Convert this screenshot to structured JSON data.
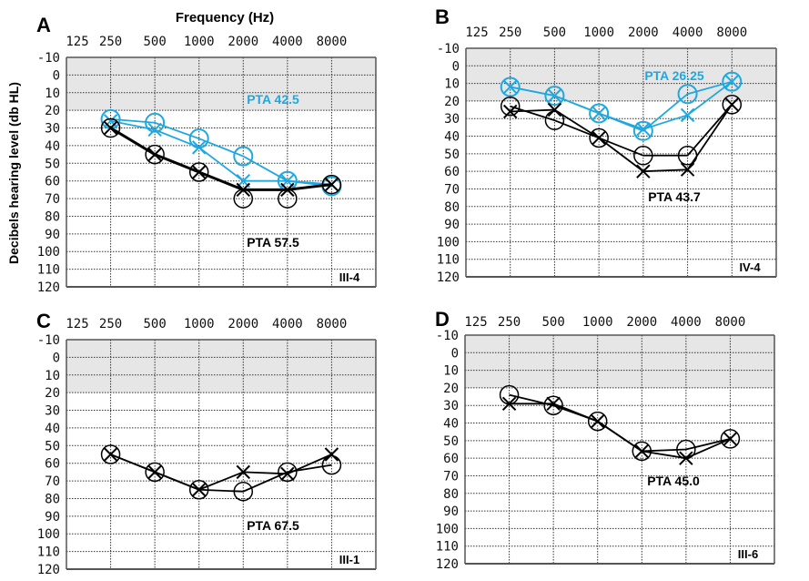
{
  "figure": {
    "x_title": "Frequency (Hz)",
    "y_title": "Decibels hearing level (db HL)",
    "colors": {
      "blue": "#1fa8e0",
      "black": "#000000",
      "normal_band": "#e6e6e6",
      "grid": "#333333"
    }
  },
  "chart_data": [
    {
      "type": "line",
      "panel_letter": "A",
      "subject": "III-4",
      "x_ticks": [
        "125",
        "250",
        "500",
        "1000",
        "2000",
        "4000",
        "8000"
      ],
      "y_ticks": [
        -10,
        0,
        10,
        20,
        30,
        40,
        50,
        60,
        70,
        80,
        90,
        100,
        110,
        120
      ],
      "ylim": [
        -10,
        120
      ],
      "y_inverted": true,
      "normal_band": [
        -10,
        20
      ],
      "grid": true,
      "annotations": [
        {
          "text": "PTA 42.5",
          "color": "blue"
        },
        {
          "text": "PTA 57.5",
          "color": "black"
        }
      ],
      "series": [
        {
          "name": "blue-circle",
          "marker": "circle",
          "color": "blue",
          "x": [
            "250",
            "500",
            "1000",
            "2000",
            "4000",
            "8000"
          ],
          "values": [
            25,
            27,
            36,
            46,
            60,
            63
          ]
        },
        {
          "name": "blue-x",
          "marker": "x",
          "color": "blue",
          "x": [
            "250",
            "500",
            "1000",
            "2000",
            "4000",
            "8000"
          ],
          "values": [
            26,
            31,
            41,
            60,
            60,
            62
          ]
        },
        {
          "name": "black-circle",
          "marker": "circle",
          "color": "black",
          "x": [
            "250",
            "500",
            "1000",
            "2000",
            "4000",
            "8000"
          ],
          "values": [
            30,
            45,
            55,
            70,
            70,
            62
          ],
          "line": false
        },
        {
          "name": "black-x",
          "marker": "x",
          "color": "black",
          "x": [
            "250",
            "500",
            "1000",
            "2000",
            "4000",
            "8000"
          ],
          "values": [
            30,
            45,
            55,
            65,
            65,
            62
          ],
          "line_thick": true
        }
      ]
    },
    {
      "type": "line",
      "panel_letter": "B",
      "subject": "IV-4",
      "x_ticks": [
        "125",
        "250",
        "500",
        "1000",
        "2000",
        "4000",
        "8000"
      ],
      "y_ticks": [
        -10,
        0,
        10,
        20,
        30,
        40,
        50,
        60,
        70,
        80,
        90,
        100,
        110,
        120
      ],
      "ylim": [
        -10,
        120
      ],
      "y_inverted": true,
      "normal_band": [
        -10,
        20
      ],
      "grid": true,
      "annotations": [
        {
          "text": "PTA 26.25",
          "color": "blue"
        },
        {
          "text": "PTA 43.7",
          "color": "black"
        }
      ],
      "series": [
        {
          "name": "blue-circle",
          "marker": "circle",
          "color": "blue",
          "x": [
            "250",
            "500",
            "1000",
            "2000",
            "4000",
            "8000"
          ],
          "values": [
            12,
            17,
            27,
            37,
            16,
            9
          ]
        },
        {
          "name": "blue-x",
          "marker": "x",
          "color": "blue",
          "x": [
            "250",
            "500",
            "1000",
            "2000",
            "4000",
            "8000"
          ],
          "values": [
            12,
            17,
            27,
            36,
            28,
            9
          ]
        },
        {
          "name": "black-circle",
          "marker": "circle",
          "color": "black",
          "x": [
            "250",
            "500",
            "1000",
            "2000",
            "4000",
            "8000"
          ],
          "values": [
            23,
            31,
            41,
            51,
            51,
            22
          ]
        },
        {
          "name": "black-x",
          "marker": "x",
          "color": "black",
          "x": [
            "250",
            "500",
            "1000",
            "2000",
            "4000",
            "8000"
          ],
          "values": [
            26,
            25,
            41,
            60,
            59,
            22
          ]
        }
      ]
    },
    {
      "type": "line",
      "panel_letter": "C",
      "subject": "III-1",
      "x_ticks": [
        "125",
        "250",
        "500",
        "1000",
        "2000",
        "4000",
        "8000"
      ],
      "y_ticks": [
        -10,
        0,
        10,
        20,
        30,
        40,
        50,
        60,
        70,
        80,
        90,
        100,
        110,
        120
      ],
      "ylim": [
        -10,
        120
      ],
      "y_inverted": true,
      "normal_band": [
        -10,
        20
      ],
      "grid": true,
      "annotations": [
        {
          "text": "PTA 67.5",
          "color": "black"
        }
      ],
      "series": [
        {
          "name": "black-circle",
          "marker": "circle",
          "color": "black",
          "x": [
            "250",
            "500",
            "1000",
            "2000",
            "4000",
            "8000"
          ],
          "values": [
            55,
            65,
            75,
            76,
            65,
            61
          ]
        },
        {
          "name": "black-x",
          "marker": "x",
          "color": "black",
          "x": [
            "250",
            "500",
            "1000",
            "2000",
            "4000",
            "8000"
          ],
          "values": [
            55,
            65,
            75,
            65,
            66,
            55
          ]
        }
      ]
    },
    {
      "type": "line",
      "panel_letter": "D",
      "subject": "III-6",
      "x_ticks": [
        "125",
        "250",
        "500",
        "1000",
        "2000",
        "4000",
        "8000"
      ],
      "y_ticks": [
        -10,
        0,
        10,
        20,
        30,
        40,
        50,
        60,
        70,
        80,
        90,
        100,
        110,
        120
      ],
      "ylim": [
        -10,
        120
      ],
      "y_inverted": true,
      "normal_band": [
        -10,
        20
      ],
      "grid": true,
      "annotations": [
        {
          "text": "PTA 45.0",
          "color": "black"
        }
      ],
      "series": [
        {
          "name": "black-circle",
          "marker": "circle",
          "color": "black",
          "x": [
            "250",
            "500",
            "1000",
            "2000",
            "4000",
            "8000"
          ],
          "values": [
            24,
            30,
            39,
            56,
            55,
            49
          ]
        },
        {
          "name": "black-x",
          "marker": "x",
          "color": "black",
          "x": [
            "250",
            "500",
            "1000",
            "2000",
            "4000",
            "8000"
          ],
          "values": [
            29,
            29,
            39,
            56,
            60,
            49
          ]
        }
      ]
    }
  ]
}
